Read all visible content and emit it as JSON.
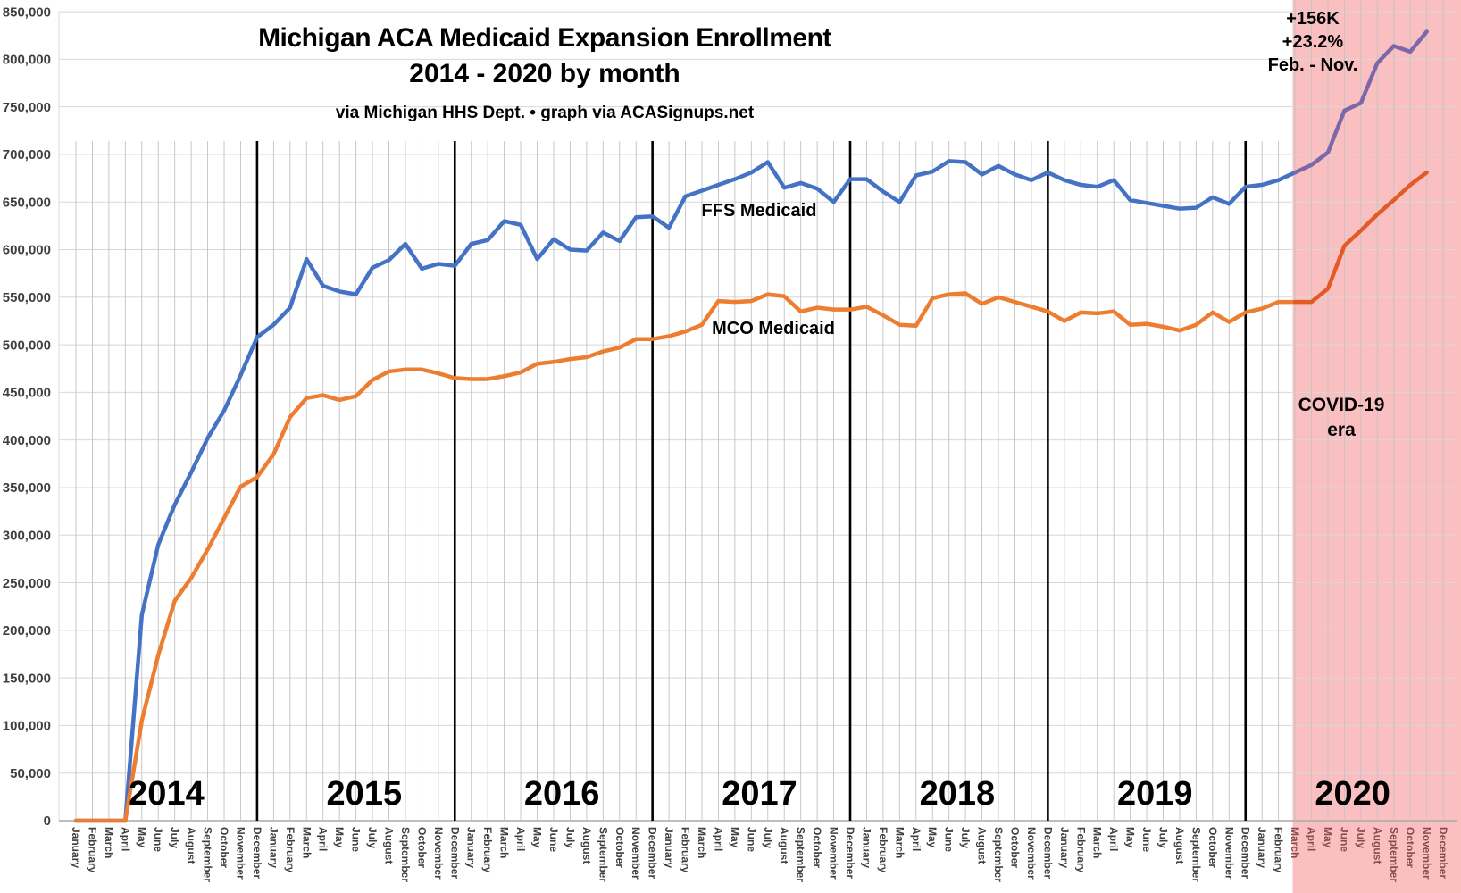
{
  "title": {
    "line1": "Michigan ACA Medicaid Expansion Enrollment",
    "line2": "2014 - 2020 by month"
  },
  "subtitle": "via Michigan HHS Dept. • graph via ACASignups.net",
  "annotation": {
    "delta": "+156K",
    "percent": "+23.2%",
    "range": "Feb. - Nov."
  },
  "covid_label": {
    "line1": "COVID-19",
    "line2": "era"
  },
  "chart_data": {
    "type": "line",
    "title": "Michigan ACA Medicaid Expansion Enrollment 2014 - 2020 by month",
    "subtitle": "via Michigan HHS Dept. • graph via ACASignups.net",
    "xlabel": "",
    "ylabel": "",
    "ylim": [
      0,
      850000
    ],
    "ytick_step": 50000,
    "ytick_labels": [
      "0",
      "50,000",
      "100,000",
      "150,000",
      "200,000",
      "250,000",
      "300,000",
      "350,000",
      "400,000",
      "450,000",
      "500,000",
      "550,000",
      "600,000",
      "650,000",
      "700,000",
      "750,000",
      "800,000",
      "850,000"
    ],
    "grid": true,
    "years": [
      "2014",
      "2015",
      "2016",
      "2017",
      "2018",
      "2019",
      "2020"
    ],
    "month_names": [
      "January",
      "February",
      "March",
      "April",
      "May",
      "June",
      "July",
      "August",
      "September",
      "October",
      "November",
      "December"
    ],
    "year_divider_month_indices": [
      11,
      23,
      35,
      47,
      59,
      71
    ],
    "covid_region": {
      "label": "COVID-19 era",
      "starts_at": "March 2020",
      "start_month_index": 74,
      "fill_color": "#FAC0C1",
      "month_label_color": "#8d4a4e"
    },
    "legend_position": "inline-labels",
    "series": [
      {
        "name": "FFS Medicaid",
        "color": "#4472C4",
        "covid_color": "#7C68A8",
        "values": [
          0,
          0,
          0,
          0,
          216000,
          290000,
          332000,
          366000,
          402000,
          431000,
          468000,
          508000,
          521000,
          539000,
          590000,
          562000,
          556000,
          553000,
          581000,
          589000,
          606000,
          580000,
          585000,
          583000,
          606000,
          610000,
          630000,
          626000,
          590000,
          611000,
          600000,
          599000,
          618000,
          609000,
          634000,
          635000,
          623000,
          656000,
          662000,
          668000,
          674000,
          681000,
          692000,
          665000,
          670000,
          664000,
          650000,
          674000,
          674000,
          661000,
          650000,
          678000,
          682000,
          693000,
          692000,
          679000,
          688000,
          679000,
          673000,
          681000,
          673000,
          668000,
          666000,
          673000,
          652000,
          649000,
          646000,
          643000,
          644000,
          655000,
          648000,
          666000,
          668000,
          673000,
          681000,
          689000,
          702000,
          746000,
          754000,
          796000,
          814000,
          808000,
          829000,
          null
        ]
      },
      {
        "name": "MCO Medicaid",
        "color": "#ED7D31",
        "covid_color": "#E25B25",
        "values": [
          0,
          0,
          0,
          0,
          105000,
          174000,
          231000,
          255000,
          285000,
          318000,
          351000,
          361000,
          385000,
          424000,
          444000,
          447000,
          442000,
          446000,
          463000,
          472000,
          474000,
          474000,
          470000,
          465000,
          464000,
          464000,
          467000,
          471000,
          480000,
          482000,
          485000,
          487000,
          493000,
          497000,
          506000,
          506000,
          509000,
          514000,
          521000,
          546000,
          545000,
          546000,
          553000,
          551000,
          535000,
          539000,
          537000,
          537000,
          540000,
          531000,
          521000,
          520000,
          549000,
          553000,
          554000,
          543000,
          550000,
          545000,
          540000,
          535000,
          525000,
          534000,
          533000,
          535000,
          521000,
          522000,
          519000,
          515000,
          521000,
          534000,
          524000,
          534000,
          538000,
          545000,
          545000,
          545000,
          559000,
          604000,
          620000,
          637000,
          652000,
          668000,
          681000,
          null
        ]
      }
    ]
  }
}
